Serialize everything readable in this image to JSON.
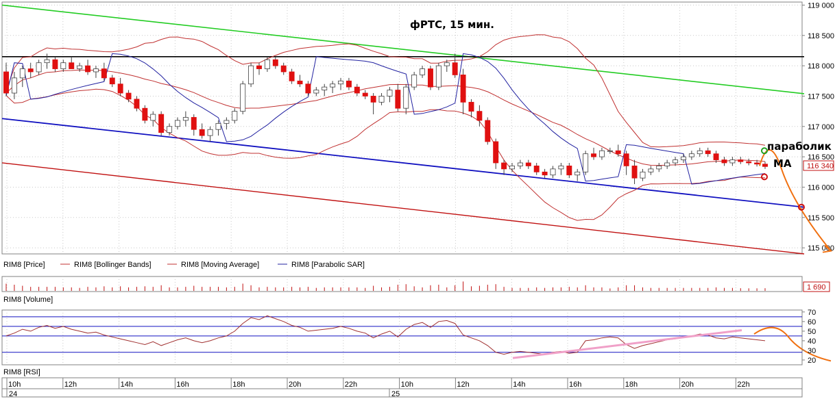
{
  "chart_data": [
    {
      "type": "line",
      "panel": "price",
      "title": "фРТС, 15 мин.",
      "ylim": [
        114900,
        119050
      ],
      "y_ticks": [
        {
          "v": 119000,
          "label": "119 000"
        },
        {
          "v": 118500,
          "label": "118 500"
        },
        {
          "v": 118000,
          "label": "118 000"
        },
        {
          "v": 117500,
          "label": "117 500"
        },
        {
          "v": 117000,
          "label": "117 000"
        },
        {
          "v": 116500,
          "label": "116 500"
        },
        {
          "v": 116000,
          "label": "116 000"
        },
        {
          "v": 115500,
          "label": "115 500"
        },
        {
          "v": 115000,
          "label": "115 000"
        }
      ],
      "last_price_label": "116 340",
      "last_price": 116340,
      "up_color": "#ffffff",
      "down_color": "#e01010",
      "candles": [
        [
          117900,
          118050,
          117500,
          117550
        ],
        [
          117550,
          117900,
          117450,
          117800
        ],
        [
          117800,
          118000,
          117650,
          117950
        ],
        [
          117950,
          118050,
          117800,
          117900
        ],
        [
          117900,
          118100,
          117850,
          118050
        ],
        [
          118050,
          118200,
          117950,
          118100
        ],
        [
          118100,
          118150,
          117900,
          117950
        ],
        [
          117950,
          118100,
          117900,
          118050
        ],
        [
          118050,
          118150,
          117950,
          117950
        ],
        [
          117950,
          118050,
          117900,
          118000
        ],
        [
          118000,
          118100,
          117850,
          117900
        ],
        [
          117900,
          118000,
          117800,
          117950
        ],
        [
          117950,
          118050,
          117750,
          117800
        ],
        [
          117800,
          117850,
          117650,
          117700
        ],
        [
          117700,
          117800,
          117500,
          117550
        ],
        [
          117550,
          117600,
          117400,
          117450
        ],
        [
          117450,
          117500,
          117250,
          117300
        ],
        [
          117300,
          117350,
          117050,
          117100
        ],
        [
          117100,
          117250,
          117000,
          117200
        ],
        [
          117200,
          117250,
          116850,
          116900
        ],
        [
          116900,
          117050,
          116850,
          117000
        ],
        [
          117000,
          117150,
          116950,
          117100
        ],
        [
          117100,
          117250,
          117000,
          117150
        ],
        [
          117150,
          117200,
          116850,
          116950
        ],
        [
          116950,
          117050,
          116800,
          116850
        ],
        [
          116850,
          117000,
          116750,
          116950
        ],
        [
          116950,
          117100,
          116850,
          117050
        ],
        [
          117050,
          117150,
          116950,
          117100
        ],
        [
          117100,
          117300,
          117050,
          117250
        ],
        [
          117250,
          117750,
          117200,
          117700
        ],
        [
          117700,
          118050,
          117650,
          118000
        ],
        [
          118000,
          118050,
          117850,
          117950
        ],
        [
          117950,
          118150,
          117900,
          118100
        ],
        [
          118100,
          118150,
          117950,
          118000
        ],
        [
          118000,
          118050,
          117850,
          117900
        ],
        [
          117900,
          117950,
          117700,
          117750
        ],
        [
          117750,
          117850,
          117650,
          117700
        ],
        [
          117700,
          117750,
          117500,
          117550
        ],
        [
          117550,
          117650,
          117500,
          117600
        ],
        [
          117600,
          117700,
          117500,
          117650
        ],
        [
          117650,
          117750,
          117550,
          117700
        ],
        [
          117700,
          117800,
          117600,
          117750
        ],
        [
          117750,
          117800,
          117600,
          117650
        ],
        [
          117650,
          117700,
          117500,
          117550
        ],
        [
          117550,
          117600,
          117450,
          117500
        ],
        [
          117500,
          117550,
          117200,
          117400
        ],
        [
          117400,
          117550,
          117350,
          117500
        ],
        [
          117500,
          117650,
          117400,
          117600
        ],
        [
          117600,
          117700,
          117250,
          117300
        ],
        [
          117300,
          117700,
          117200,
          117650
        ],
        [
          117650,
          117900,
          117600,
          117850
        ],
        [
          117850,
          118000,
          117800,
          117950
        ],
        [
          117950,
          118000,
          117600,
          117650
        ],
        [
          117650,
          118050,
          117600,
          118000
        ],
        [
          118000,
          118100,
          117900,
          118050
        ],
        [
          118050,
          118200,
          117800,
          117850
        ],
        [
          117850,
          117950,
          117200,
          117400
        ],
        [
          117400,
          117450,
          117150,
          117250
        ],
        [
          117250,
          117350,
          117000,
          117100
        ],
        [
          117100,
          117150,
          116700,
          116750
        ],
        [
          116750,
          116800,
          116300,
          116400
        ],
        [
          116400,
          116450,
          116200,
          116300
        ],
        [
          116300,
          116400,
          116250,
          116350
        ],
        [
          116350,
          116450,
          116300,
          116400
        ],
        [
          116400,
          116450,
          116300,
          116350
        ],
        [
          116350,
          116400,
          116200,
          116250
        ],
        [
          116250,
          116300,
          116150,
          116200
        ],
        [
          116200,
          116350,
          116150,
          116300
        ],
        [
          116300,
          116400,
          116200,
          116350
        ],
        [
          116350,
          116400,
          116150,
          116200
        ],
        [
          116200,
          116300,
          116100,
          116250
        ],
        [
          116250,
          116600,
          116200,
          116550
        ],
        [
          116550,
          116650,
          116450,
          116500
        ],
        [
          116500,
          116650,
          116450,
          116600
        ],
        [
          116600,
          116650,
          116550,
          116600
        ],
        [
          116600,
          116700,
          116500,
          116550
        ],
        [
          116550,
          116600,
          116200,
          116350
        ],
        [
          116350,
          116450,
          116050,
          116150
        ],
        [
          116150,
          116300,
          116100,
          116250
        ],
        [
          116250,
          116350,
          116200,
          116300
        ],
        [
          116300,
          116400,
          116250,
          116350
        ],
        [
          116350,
          116450,
          116300,
          116400
        ],
        [
          116400,
          116500,
          116350,
          116450
        ],
        [
          116450,
          116550,
          116400,
          116500
        ],
        [
          116500,
          116600,
          116450,
          116550
        ],
        [
          116550,
          116650,
          116500,
          116600
        ],
        [
          116600,
          116650,
          116500,
          116550
        ],
        [
          116550,
          116600,
          116400,
          116450
        ],
        [
          116450,
          116500,
          116350,
          116400
        ],
        [
          116400,
          116500,
          116350,
          116450
        ],
        [
          116450,
          116500,
          116380,
          116420
        ],
        [
          116420,
          116470,
          116360,
          116400
        ],
        [
          116400,
          116450,
          116340,
          116380
        ],
        [
          116380,
          116420,
          116300,
          116340
        ]
      ],
      "lines": {
        "green_trend": {
          "color": "#22cc22",
          "points": [
            [
              0,
              119000
            ],
            [
              1170,
              117540
            ]
          ]
        },
        "black_level": {
          "color": "#000000",
          "points": [
            [
              0,
              118150
            ],
            [
              1170,
              118150
            ]
          ]
        },
        "blue_channel": {
          "color": "#1010c0",
          "points": [
            [
              0,
              117130
            ],
            [
              1170,
              115670
            ]
          ]
        },
        "red_channel": {
          "color": "#c01010",
          "points": [
            [
              0,
              116400
            ],
            [
              1170,
              114900
            ]
          ]
        }
      },
      "series": [
        {
          "name": "RIM8 [Price]",
          "color": "#000000"
        },
        {
          "name": "RIM8 [Bollinger Bands]",
          "color": "#c03030"
        },
        {
          "name": "RIM8 [Moving Average]",
          "color": "#c03030"
        },
        {
          "name": "RIM8 [Parabolic SAR]",
          "color": "#2020a0"
        }
      ],
      "annotations": {
        "parabolik": "параболик",
        "ma": "MA"
      }
    },
    {
      "type": "bar",
      "panel": "volume",
      "legend": "RIM8 [Volume]",
      "last_value_label": "1 690"
    },
    {
      "type": "line",
      "panel": "rsi",
      "legend": "RIM8 [RSI]",
      "ylim": [
        15,
        72
      ],
      "y_ticks": [
        {
          "v": 70,
          "label": "70"
        },
        {
          "v": 60,
          "label": "60"
        },
        {
          "v": 50,
          "label": "50"
        },
        {
          "v": 40,
          "label": "40"
        },
        {
          "v": 30,
          "label": "30"
        },
        {
          "v": 20,
          "label": "20"
        }
      ],
      "levels": [
        65,
        55,
        45,
        28
      ],
      "values": [
        45,
        48,
        52,
        50,
        54,
        56,
        53,
        55,
        52,
        50,
        48,
        49,
        46,
        44,
        42,
        40,
        38,
        36,
        39,
        35,
        38,
        41,
        43,
        40,
        38,
        40,
        43,
        45,
        50,
        58,
        64,
        62,
        66,
        63,
        60,
        56,
        54,
        50,
        51,
        52,
        53,
        55,
        53,
        50,
        48,
        43,
        47,
        50,
        44,
        52,
        57,
        59,
        54,
        60,
        61,
        58,
        46,
        43,
        40,
        35,
        28,
        26,
        28,
        29,
        28,
        27,
        26,
        28,
        29,
        27,
        28,
        40,
        41,
        43,
        44,
        43,
        36,
        32,
        35,
        37,
        39,
        41,
        42,
        44,
        45,
        47,
        46,
        43,
        42,
        44,
        43,
        42,
        41,
        40
      ]
    }
  ],
  "x_axis": {
    "times": [
      "10h",
      "12h",
      "14h",
      "16h",
      "18h",
      "20h",
      "22h",
      "10h",
      "12h",
      "14h",
      "16h",
      "18h",
      "20h",
      "22h"
    ],
    "days": [
      "24",
      "25"
    ]
  }
}
